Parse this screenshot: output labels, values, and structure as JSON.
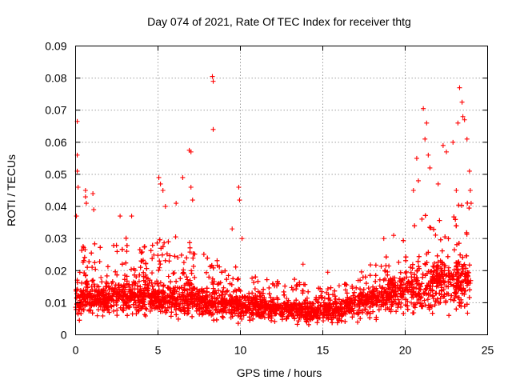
{
  "chart_data": {
    "type": "scatter",
    "title": "Day 074 of 2021, Rate Of TEC Index for receiver thtg",
    "xlabel": "GPS time / hours",
    "ylabel": "ROTI / TECUs",
    "xlim": [
      0,
      25
    ],
    "ylim": [
      0,
      0.09
    ],
    "x_ticks": [
      0,
      5,
      10,
      15,
      20,
      25
    ],
    "x_tick_labels": [
      "0",
      "5",
      "10",
      "15",
      "20",
      "25"
    ],
    "y_ticks": [
      0,
      0.01,
      0.02,
      0.03,
      0.04,
      0.05,
      0.06,
      0.07,
      0.08,
      0.09
    ],
    "y_tick_labels": [
      "0",
      "0.01",
      "0.02",
      "0.03",
      "0.04",
      "0.05",
      "0.06",
      "0.07",
      "0.08",
      "0.09"
    ],
    "grid": true,
    "marker": "+",
    "series_color": "#ff0000",
    "envelope": {
      "description": "approximate per-hour spread of the dense ROTI cloud",
      "hours": [
        0,
        1,
        2,
        3,
        4,
        5,
        6,
        7,
        8,
        9,
        10,
        11,
        12,
        13,
        14,
        15,
        16,
        17,
        18,
        19,
        20,
        21,
        22,
        23,
        24
      ],
      "median": [
        0.011,
        0.011,
        0.011,
        0.012,
        0.012,
        0.011,
        0.011,
        0.011,
        0.01,
        0.01,
        0.009,
        0.009,
        0.008,
        0.008,
        0.007,
        0.007,
        0.008,
        0.009,
        0.011,
        0.012,
        0.013,
        0.015,
        0.016,
        0.016,
        0.016
      ],
      "upper": [
        0.026,
        0.028,
        0.026,
        0.03,
        0.03,
        0.03,
        0.03,
        0.028,
        0.024,
        0.022,
        0.02,
        0.019,
        0.018,
        0.018,
        0.016,
        0.014,
        0.015,
        0.018,
        0.022,
        0.025,
        0.03,
        0.036,
        0.04,
        0.042,
        0.04
      ],
      "lower": [
        0.004,
        0.004,
        0.004,
        0.004,
        0.004,
        0.004,
        0.004,
        0.004,
        0.004,
        0.003,
        0.003,
        0.003,
        0.003,
        0.003,
        0.002,
        0.002,
        0.003,
        0.003,
        0.004,
        0.004,
        0.004,
        0.004,
        0.004,
        0.004,
        0.004
      ]
    },
    "outliers": [
      {
        "x": 0.1,
        "y": 0.0665
      },
      {
        "x": 0.1,
        "y": 0.056
      },
      {
        "x": 0.1,
        "y": 0.051
      },
      {
        "x": 0.15,
        "y": 0.046
      },
      {
        "x": 0.05,
        "y": 0.037
      },
      {
        "x": 0.6,
        "y": 0.045
      },
      {
        "x": 0.6,
        "y": 0.043
      },
      {
        "x": 0.65,
        "y": 0.041
      },
      {
        "x": 1.05,
        "y": 0.044
      },
      {
        "x": 1.1,
        "y": 0.039
      },
      {
        "x": 2.7,
        "y": 0.037
      },
      {
        "x": 3.4,
        "y": 0.037
      },
      {
        "x": 5.05,
        "y": 0.049
      },
      {
        "x": 5.15,
        "y": 0.047
      },
      {
        "x": 5.3,
        "y": 0.045
      },
      {
        "x": 5.45,
        "y": 0.04
      },
      {
        "x": 6.1,
        "y": 0.041
      },
      {
        "x": 6.5,
        "y": 0.049
      },
      {
        "x": 6.9,
        "y": 0.0575
      },
      {
        "x": 7.0,
        "y": 0.057
      },
      {
        "x": 7.0,
        "y": 0.046
      },
      {
        "x": 7.1,
        "y": 0.042
      },
      {
        "x": 8.3,
        "y": 0.0805
      },
      {
        "x": 8.35,
        "y": 0.079
      },
      {
        "x": 8.35,
        "y": 0.064
      },
      {
        "x": 9.9,
        "y": 0.046
      },
      {
        "x": 9.95,
        "y": 0.042
      },
      {
        "x": 9.5,
        "y": 0.033
      },
      {
        "x": 10.1,
        "y": 0.03
      },
      {
        "x": 13.8,
        "y": 0.022
      },
      {
        "x": 15.3,
        "y": 0.0195
      },
      {
        "x": 18.7,
        "y": 0.03
      },
      {
        "x": 19.3,
        "y": 0.031
      },
      {
        "x": 20.5,
        "y": 0.045
      },
      {
        "x": 20.7,
        "y": 0.055
      },
      {
        "x": 20.8,
        "y": 0.048
      },
      {
        "x": 21.1,
        "y": 0.0705
      },
      {
        "x": 21.3,
        "y": 0.066
      },
      {
        "x": 21.2,
        "y": 0.061
      },
      {
        "x": 21.4,
        "y": 0.056
      },
      {
        "x": 21.5,
        "y": 0.052
      },
      {
        "x": 22.3,
        "y": 0.059
      },
      {
        "x": 22.5,
        "y": 0.057
      },
      {
        "x": 22.9,
        "y": 0.06
      },
      {
        "x": 23.2,
        "y": 0.066
      },
      {
        "x": 23.3,
        "y": 0.077
      },
      {
        "x": 23.45,
        "y": 0.0725
      },
      {
        "x": 23.5,
        "y": 0.068
      },
      {
        "x": 23.6,
        "y": 0.067
      },
      {
        "x": 23.75,
        "y": 0.061
      },
      {
        "x": 23.9,
        "y": 0.051
      },
      {
        "x": 23.95,
        "y": 0.045
      },
      {
        "x": 24.0,
        "y": 0.041
      },
      {
        "x": 23.1,
        "y": 0.045
      },
      {
        "x": 22.0,
        "y": 0.047
      }
    ]
  }
}
